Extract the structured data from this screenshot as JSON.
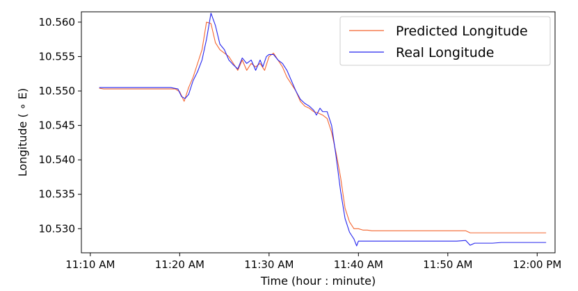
{
  "chart_data": {
    "type": "line",
    "title": "",
    "xlabel": "Time (hour : minute)",
    "ylabel": "Longitude ($^\\circ$E)",
    "ylabel_display": "Longitude ( ∘ E)",
    "x_unit": "minutes after 11:00 AM",
    "xlim": [
      69,
      122
    ],
    "ylim": [
      10.5265,
      10.5615
    ],
    "x_ticks": [
      {
        "value": 70,
        "label": "11:10 AM"
      },
      {
        "value": 80,
        "label": "11:20 AM"
      },
      {
        "value": 90,
        "label": "11:30 AM"
      },
      {
        "value": 100,
        "label": "11:40 AM"
      },
      {
        "value": 110,
        "label": "11:50 AM"
      },
      {
        "value": 120,
        "label": "12:00 PM"
      }
    ],
    "y_ticks": [
      {
        "value": 10.53,
        "label": "10.530"
      },
      {
        "value": 10.535,
        "label": "10.535"
      },
      {
        "value": 10.54,
        "label": "10.540"
      },
      {
        "value": 10.545,
        "label": "10.545"
      },
      {
        "value": 10.55,
        "label": "10.550"
      },
      {
        "value": 10.555,
        "label": "10.555"
      },
      {
        "value": 10.56,
        "label": "10.560"
      }
    ],
    "grid": false,
    "legend_position": "top-right",
    "series": [
      {
        "name": "Predicted Longitude",
        "color": "#f4652f",
        "points": [
          [
            71.0,
            10.5504
          ],
          [
            71.5,
            10.5503
          ],
          [
            72.0,
            10.5503
          ],
          [
            72.5,
            10.5503
          ],
          [
            73.0,
            10.5503
          ],
          [
            73.5,
            10.5503
          ],
          [
            74.0,
            10.5503
          ],
          [
            74.5,
            10.5503
          ],
          [
            75.0,
            10.5503
          ],
          [
            75.5,
            10.5503
          ],
          [
            76.0,
            10.5503
          ],
          [
            76.5,
            10.5503
          ],
          [
            77.0,
            10.5503
          ],
          [
            77.5,
            10.5503
          ],
          [
            78.0,
            10.5503
          ],
          [
            78.5,
            10.5503
          ],
          [
            79.0,
            10.5503
          ],
          [
            79.5,
            10.5503
          ],
          [
            80.0,
            10.5499
          ],
          [
            80.5,
            10.5485
          ],
          [
            81.0,
            10.5505
          ],
          [
            81.5,
            10.552
          ],
          [
            82.0,
            10.554
          ],
          [
            82.5,
            10.556
          ],
          [
            83.0,
            10.56
          ],
          [
            83.5,
            10.5598
          ],
          [
            84.0,
            10.557
          ],
          [
            84.5,
            10.556
          ],
          [
            85.0,
            10.5555
          ],
          [
            85.5,
            10.555
          ],
          [
            86.0,
            10.554
          ],
          [
            86.5,
            10.553
          ],
          [
            87.0,
            10.5545
          ],
          [
            87.5,
            10.553
          ],
          [
            88.0,
            10.554
          ],
          [
            88.5,
            10.5535
          ],
          [
            89.0,
            10.554
          ],
          [
            89.5,
            10.553
          ],
          [
            90.0,
            10.555
          ],
          [
            90.5,
            10.5555
          ],
          [
            91.0,
            10.5545
          ],
          [
            91.5,
            10.5535
          ],
          [
            92.0,
            10.552
          ],
          [
            92.5,
            10.551
          ],
          [
            93.0,
            10.55
          ],
          [
            93.5,
            10.5485
          ],
          [
            94.0,
            10.5478
          ],
          [
            94.5,
            10.5475
          ],
          [
            95.0,
            10.547
          ],
          [
            95.5,
            10.5468
          ],
          [
            96.0,
            10.5465
          ],
          [
            96.5,
            10.546
          ],
          [
            97.0,
            10.544
          ],
          [
            97.5,
            10.541
          ],
          [
            98.0,
            10.5375
          ],
          [
            98.5,
            10.533
          ],
          [
            99.0,
            10.531
          ],
          [
            99.5,
            10.53
          ],
          [
            100.0,
            10.53
          ],
          [
            100.5,
            10.5298
          ],
          [
            101.0,
            10.5298
          ],
          [
            101.5,
            10.5297
          ],
          [
            102.0,
            10.5297
          ],
          [
            102.5,
            10.5297
          ],
          [
            103.0,
            10.5297
          ],
          [
            103.5,
            10.5297
          ],
          [
            104.0,
            10.5297
          ],
          [
            104.5,
            10.5297
          ],
          [
            105.0,
            10.5297
          ],
          [
            105.5,
            10.5297
          ],
          [
            106.0,
            10.5297
          ],
          [
            106.5,
            10.5297
          ],
          [
            107.0,
            10.5297
          ],
          [
            107.5,
            10.5297
          ],
          [
            108.0,
            10.5297
          ],
          [
            108.5,
            10.5297
          ],
          [
            109.0,
            10.5297
          ],
          [
            109.5,
            10.5297
          ],
          [
            110.0,
            10.5297
          ],
          [
            110.5,
            10.5297
          ],
          [
            111.0,
            10.5297
          ],
          [
            111.5,
            10.5297
          ],
          [
            112.0,
            10.5297
          ],
          [
            112.5,
            10.5294
          ],
          [
            113.0,
            10.5294
          ],
          [
            113.5,
            10.5294
          ],
          [
            114.0,
            10.5294
          ],
          [
            114.5,
            10.5294
          ],
          [
            115.0,
            10.5294
          ],
          [
            115.5,
            10.5294
          ],
          [
            116.0,
            10.5294
          ],
          [
            116.5,
            10.5294
          ],
          [
            117.0,
            10.5294
          ],
          [
            117.5,
            10.5294
          ],
          [
            118.0,
            10.5294
          ],
          [
            118.5,
            10.5294
          ],
          [
            119.0,
            10.5294
          ],
          [
            119.5,
            10.5294
          ],
          [
            120.0,
            10.5294
          ],
          [
            120.5,
            10.5294
          ],
          [
            121.0,
            10.5294
          ]
        ]
      },
      {
        "name": "Real Longitude",
        "color": "#2323ee",
        "points": [
          [
            71.0,
            10.5505
          ],
          [
            72.0,
            10.5505
          ],
          [
            73.0,
            10.5505
          ],
          [
            74.0,
            10.5505
          ],
          [
            75.0,
            10.5505
          ],
          [
            76.0,
            10.5505
          ],
          [
            77.0,
            10.5505
          ],
          [
            78.0,
            10.5505
          ],
          [
            79.0,
            10.5505
          ],
          [
            79.8,
            10.5503
          ],
          [
            80.2,
            10.5492
          ],
          [
            80.6,
            10.5489
          ],
          [
            81.0,
            10.5495
          ],
          [
            81.5,
            10.5515
          ],
          [
            82.0,
            10.5528
          ],
          [
            82.5,
            10.5545
          ],
          [
            83.0,
            10.5575
          ],
          [
            83.5,
            10.5613
          ],
          [
            84.0,
            10.5595
          ],
          [
            84.5,
            10.5568
          ],
          [
            85.0,
            10.556
          ],
          [
            85.5,
            10.5545
          ],
          [
            86.0,
            10.5538
          ],
          [
            86.5,
            10.5532
          ],
          [
            87.0,
            10.5548
          ],
          [
            87.5,
            10.554
          ],
          [
            88.0,
            10.5545
          ],
          [
            88.5,
            10.553
          ],
          [
            89.0,
            10.5545
          ],
          [
            89.3,
            10.5535
          ],
          [
            89.7,
            10.555
          ],
          [
            90.0,
            10.5553
          ],
          [
            90.5,
            10.5553
          ],
          [
            91.0,
            10.5545
          ],
          [
            91.5,
            10.554
          ],
          [
            92.0,
            10.553
          ],
          [
            92.5,
            10.5515
          ],
          [
            93.0,
            10.55
          ],
          [
            93.5,
            10.5488
          ],
          [
            94.0,
            10.5482
          ],
          [
            94.5,
            10.5478
          ],
          [
            95.0,
            10.5472
          ],
          [
            95.3,
            10.5465
          ],
          [
            95.7,
            10.5475
          ],
          [
            96.0,
            10.547
          ],
          [
            96.5,
            10.547
          ],
          [
            97.0,
            10.545
          ],
          [
            97.5,
            10.5405
          ],
          [
            98.0,
            10.5355
          ],
          [
            98.5,
            10.5315
          ],
          [
            99.0,
            10.5295
          ],
          [
            99.5,
            10.5285
          ],
          [
            99.8,
            10.5275
          ],
          [
            100.0,
            10.5282
          ],
          [
            101.0,
            10.5282
          ],
          [
            102.0,
            10.5282
          ],
          [
            103.0,
            10.5282
          ],
          [
            104.0,
            10.5282
          ],
          [
            105.0,
            10.5282
          ],
          [
            106.0,
            10.5282
          ],
          [
            107.0,
            10.5282
          ],
          [
            108.0,
            10.5282
          ],
          [
            109.0,
            10.5282
          ],
          [
            110.0,
            10.5282
          ],
          [
            111.0,
            10.5282
          ],
          [
            112.0,
            10.5283
          ],
          [
            112.5,
            10.5276
          ],
          [
            113.0,
            10.5279
          ],
          [
            114.0,
            10.5279
          ],
          [
            115.0,
            10.5279
          ],
          [
            116.0,
            10.528
          ],
          [
            117.0,
            10.528
          ],
          [
            118.0,
            10.528
          ],
          [
            119.0,
            10.528
          ],
          [
            120.0,
            10.528
          ],
          [
            121.0,
            10.528
          ]
        ]
      }
    ]
  }
}
